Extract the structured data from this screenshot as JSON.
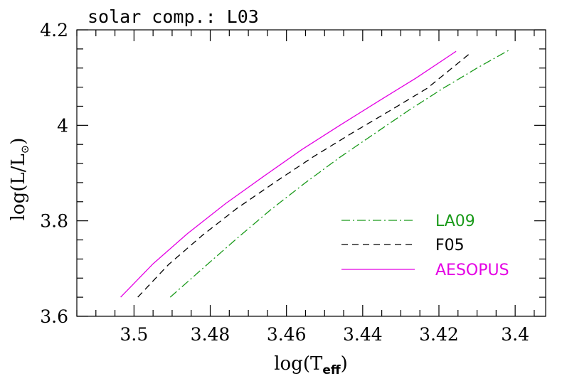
{
  "chart_data": {
    "type": "line",
    "title": "solar comp.: L03",
    "xlabel": {
      "base": "log(T",
      "sub": "eff",
      "close": ")"
    },
    "ylabel": {
      "base": "log(L/L",
      "sub": "⊙",
      "close": ")"
    },
    "xlim": [
      3.515,
      3.392
    ],
    "ylim": [
      3.6,
      4.2
    ],
    "x_reversed": true,
    "x_ticks": [
      "3.5",
      "3.48",
      "3.46",
      "3.44",
      "3.42",
      "3.4"
    ],
    "y_ticks": [
      "3.6",
      "3.8",
      "4",
      "4.2"
    ],
    "legend_position": "lower-right",
    "series": [
      {
        "name": "LA09",
        "color": "#1a9a1a",
        "style": "dashdot",
        "x": [
          3.4905,
          3.482,
          3.473,
          3.464,
          3.455,
          3.446,
          3.437,
          3.428,
          3.419,
          3.41,
          3.4015
        ],
        "y": [
          3.64,
          3.7,
          3.763,
          3.824,
          3.88,
          3.933,
          3.982,
          4.031,
          4.077,
          4.12,
          4.158
        ]
      },
      {
        "name": "F05",
        "color": "#000000",
        "style": "dashed",
        "x": [
          3.499,
          3.491,
          3.482,
          3.473,
          3.463,
          3.453,
          3.443,
          3.433,
          3.423,
          3.4115
        ],
        "y": [
          3.64,
          3.708,
          3.77,
          3.826,
          3.881,
          3.934,
          3.983,
          4.03,
          4.078,
          4.153
        ]
      },
      {
        "name": "AESOPUS",
        "color": "#e400e4",
        "style": "solid",
        "x": [
          3.5035,
          3.495,
          3.486,
          3.476,
          3.466,
          3.456,
          3.446,
          3.436,
          3.426,
          3.4155
        ],
        "y": [
          3.64,
          3.71,
          3.773,
          3.836,
          3.893,
          3.949,
          4.0,
          4.05,
          4.099,
          4.155
        ]
      }
    ]
  }
}
